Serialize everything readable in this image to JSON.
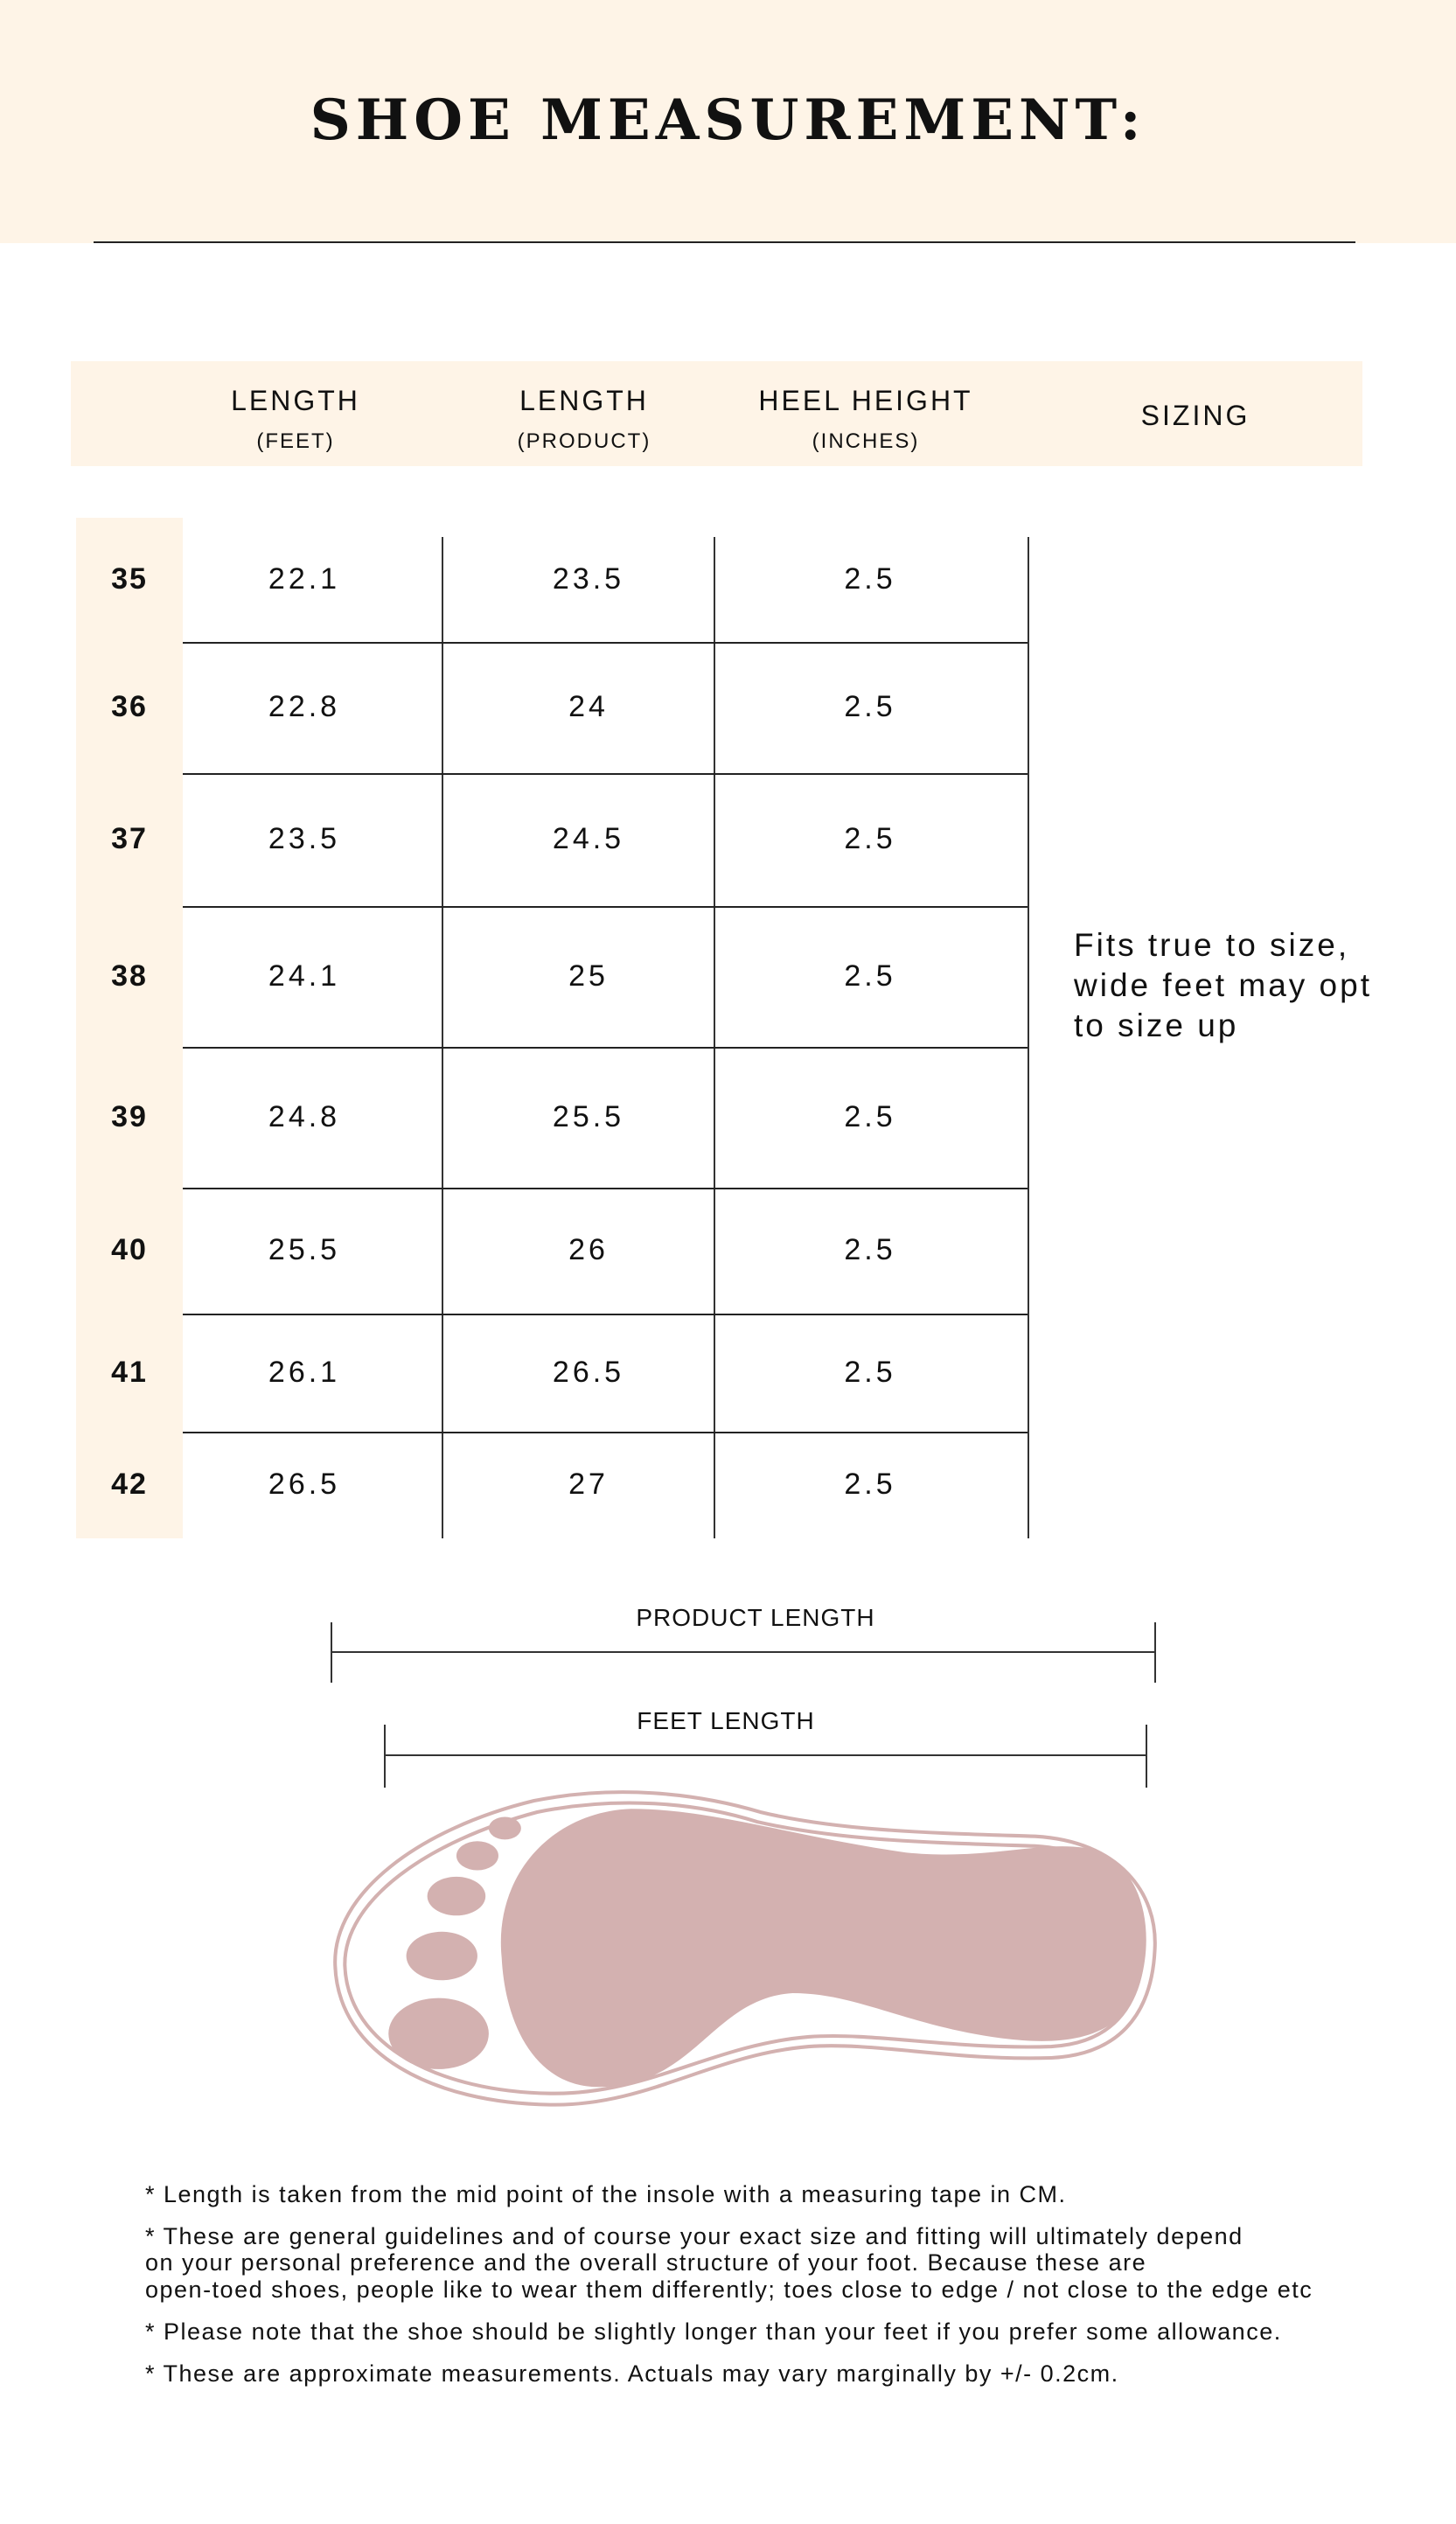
{
  "title": "SHOE MEASUREMENT:",
  "table": {
    "headers": [
      {
        "label": "LENGTH",
        "sub": "(FEET)"
      },
      {
        "label": "LENGTH",
        "sub": "(PRODUCT)"
      },
      {
        "label": "HEEL HEIGHT",
        "sub": "(INCHES)"
      },
      {
        "label": "SIZING",
        "sub": ""
      }
    ],
    "rows": [
      {
        "size": "35",
        "feet": "22.1",
        "product": "23.5",
        "heel": "2.5"
      },
      {
        "size": "36",
        "feet": "22.8",
        "product": "24",
        "heel": "2.5"
      },
      {
        "size": "37",
        "feet": "23.5",
        "product": "24.5",
        "heel": "2.5"
      },
      {
        "size": "38",
        "feet": "24.1",
        "product": "25",
        "heel": "2.5"
      },
      {
        "size": "39",
        "feet": "24.8",
        "product": "25.5",
        "heel": "2.5"
      },
      {
        "size": "40",
        "feet": "25.5",
        "product": "26",
        "heel": "2.5"
      },
      {
        "size": "41",
        "feet": "26.1",
        "product": "26.5",
        "heel": "2.5"
      },
      {
        "size": "42",
        "feet": "26.5",
        "product": "27",
        "heel": "2.5"
      }
    ],
    "sizing_note": [
      "Fits true to size,",
      "wide feet may opt",
      "to size up"
    ]
  },
  "diagram": {
    "product_length": "PRODUCT LENGTH",
    "feet_length": "FEET LENGTH",
    "foot_color": "#d3b1b0",
    "icon": "footprint-in-sole-icon"
  },
  "notes": [
    "* Length is taken from the mid point of the insole with a measuring tape in CM.",
    "* These are general guidelines and of course your exact size and fitting will ultimately depend",
    "on your personal preference and the overall structure of your foot. Because these are",
    "open-toed shoes, people like to wear them differently; toes close to edge / not close to the edge etc",
    "* Please note that the shoe should be slightly longer than your feet if you prefer some allowance.",
    "* These are approximate measurements. Actuals may vary marginally by +/- 0.2cm."
  ],
  "colors": {
    "cream": "#fef4e7",
    "line": "#222222"
  }
}
